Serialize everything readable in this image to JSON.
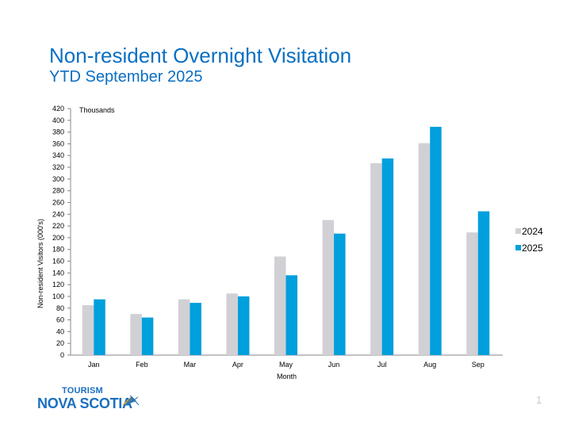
{
  "slide": {
    "title": "Non-resident Overnight Visitation",
    "subtitle": "YTD September 2025",
    "page_number": "1",
    "logo": {
      "top": "TOURISM",
      "main": "NOVA SCOTIA"
    }
  },
  "chart_data": {
    "type": "bar",
    "title": "",
    "xlabel": "Month",
    "ylabel": "Non-resident Visitors (000's)",
    "unit_note": "Thousands",
    "ylim": [
      0,
      420
    ],
    "yticks": [
      0,
      20,
      40,
      60,
      80,
      100,
      120,
      140,
      160,
      180,
      200,
      220,
      240,
      260,
      280,
      300,
      320,
      340,
      360,
      380,
      400,
      420
    ],
    "grid": false,
    "legend_position": "right",
    "categories": [
      "Jan",
      "Feb",
      "Mar",
      "Apr",
      "May",
      "Jun",
      "Jul",
      "Aug",
      "Sep"
    ],
    "series": [
      {
        "name": "2024",
        "color": "#d0d0d5",
        "values": [
          85,
          70,
          95,
          105,
          168,
          230,
          327,
          361,
          209
        ]
      },
      {
        "name": "2025",
        "color": "#00a0dc",
        "values": [
          95,
          64,
          89,
          100,
          136,
          207,
          335,
          389,
          245
        ]
      }
    ]
  }
}
